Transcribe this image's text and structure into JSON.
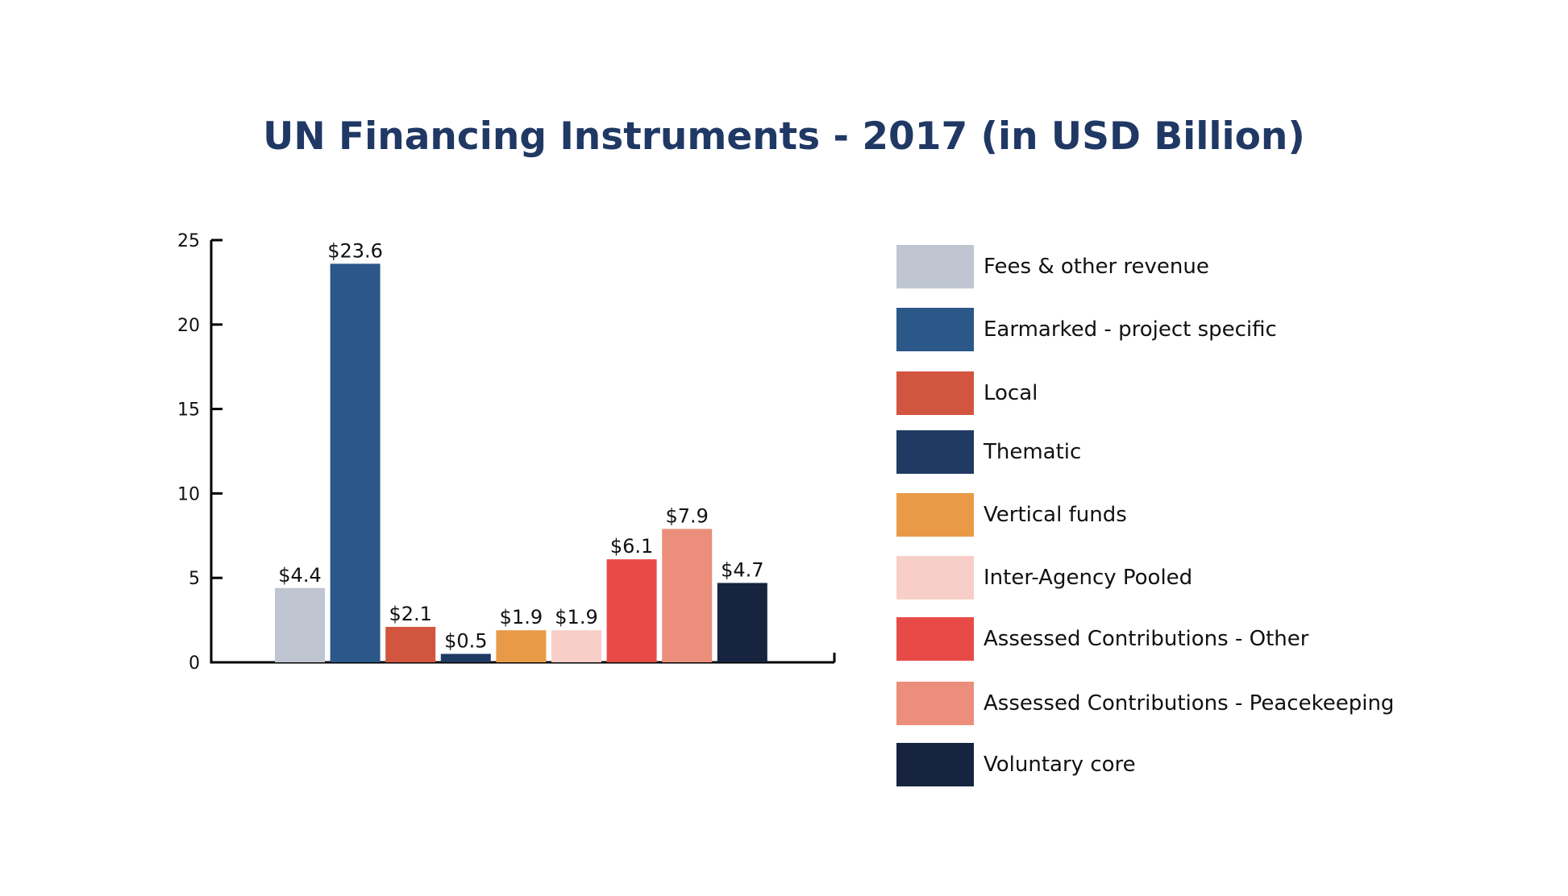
{
  "chart_data": {
    "type": "bar",
    "title": "UN Financing Instruments - 2017 (in USD Billion)",
    "xlabel": "",
    "ylabel": "",
    "ylim": [
      0,
      25
    ],
    "yticks": [
      0,
      5,
      10,
      15,
      20,
      25
    ],
    "ytick_labels": [
      "0",
      "5",
      "10",
      "15",
      "20",
      "25"
    ],
    "grid": false,
    "legend_position": "right",
    "categories": [
      "Fees & other revenue",
      "Earmarked - project specific",
      "Local",
      "Thematic",
      "Vertical funds",
      "Inter-Agency Pooled",
      "Assessed Contributions - Other",
      "Assessed Contributions - Peacekeeping",
      "Voluntary core"
    ],
    "values": [
      4.4,
      23.6,
      2.1,
      0.5,
      1.9,
      1.9,
      6.1,
      7.9,
      4.7
    ],
    "data_labels": [
      "$4.4",
      "$23.6",
      "$2.1",
      "$0.5",
      "$1.9",
      "$1.9",
      "$6.1",
      "$7.9",
      "$4.7"
    ],
    "colors": [
      "#BFC6D2",
      "#2B5789",
      "#D2553F",
      "#1F3A63",
      "#E99A47",
      "#F7CFC8",
      "#E84B47",
      "#EB8E7B",
      "#16243F"
    ]
  }
}
